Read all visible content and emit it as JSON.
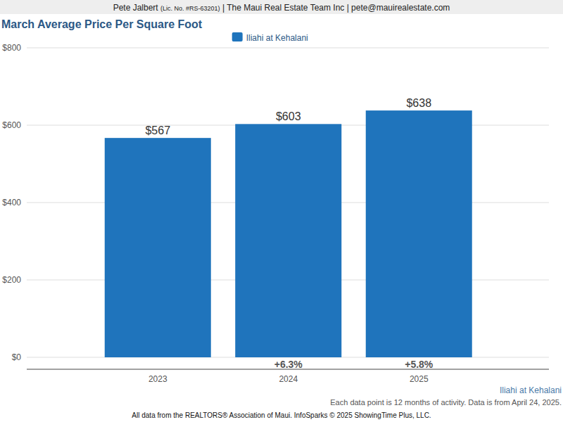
{
  "header": {
    "name": "Pete Jalbert",
    "license": "(Lic. No. #RS-63201)",
    "company": "| The Maui Real Estate Team Inc | pete@mauirealestate.com"
  },
  "chart_data": {
    "type": "bar",
    "title": "March Average Price Per Square Foot",
    "categories": [
      "2023",
      "2024",
      "2025"
    ],
    "series": [
      {
        "name": "Iliahi at Kehalani",
        "color": "#1f74bc",
        "values": [
          567,
          603,
          638
        ],
        "value_labels": [
          "$567",
          "$603",
          "$638"
        ]
      }
    ],
    "ylim": [
      0,
      800
    ],
    "yticks": [
      {
        "value": 0,
        "label": "$0"
      },
      {
        "value": 200,
        "label": "$200"
      },
      {
        "value": 400,
        "label": "$400"
      },
      {
        "value": 600,
        "label": "$600"
      },
      {
        "value": 800,
        "label": "$800"
      }
    ],
    "grid": true,
    "legend": "top",
    "data_labels": true,
    "annotations": [
      {
        "category": "2024",
        "text": "+6.3%"
      },
      {
        "category": "2025",
        "text": "+5.8%"
      }
    ],
    "caption": "Iliahi at Kehalani",
    "note": "Each data point is 12 months of activity. Data is from April 24, 2025."
  },
  "footer": "All data from the REALTORS® Association of Maui. InfoSparks © 2025 ShowingTime Plus, LLC."
}
